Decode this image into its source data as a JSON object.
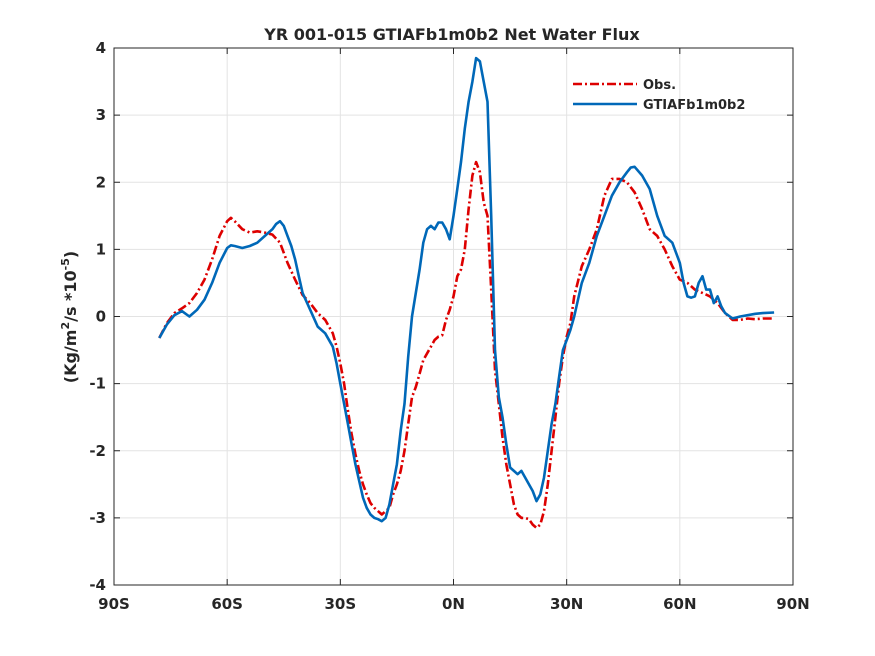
{
  "chart_data": {
    "type": "line",
    "title": "YR 001-015 GTIAFb1m0b2  Net Water Flux",
    "xlabel": "",
    "ylabel_parts": [
      "(Kg/m",
      "2",
      "/s *10",
      "-5",
      ")"
    ],
    "xlim": [
      -90,
      90
    ],
    "ylim": [
      -4,
      4
    ],
    "x_ticks": [
      -90,
      -60,
      -30,
      0,
      30,
      60,
      90
    ],
    "x_tick_labels": [
      "90S",
      "60S",
      "30S",
      "0N",
      "30N",
      "60N",
      "90N"
    ],
    "y_ticks": [
      -4,
      -3,
      -2,
      -1,
      0,
      1,
      2,
      3,
      4
    ],
    "y_tick_labels": [
      "-4",
      "-3",
      "-2",
      "-1",
      "0",
      "1",
      "2",
      "3",
      "4"
    ],
    "grid": true,
    "legend_position": "top-right",
    "series": [
      {
        "name": "Obs.",
        "color": "#dd0000",
        "style": "dashdot",
        "points": [
          [
            -78,
            -0.32
          ],
          [
            -76,
            -0.1
          ],
          [
            -74,
            0.05
          ],
          [
            -72,
            0.12
          ],
          [
            -70,
            0.2
          ],
          [
            -68,
            0.35
          ],
          [
            -66,
            0.55
          ],
          [
            -64,
            0.85
          ],
          [
            -62,
            1.2
          ],
          [
            -60,
            1.42
          ],
          [
            -59,
            1.47
          ],
          [
            -58,
            1.42
          ],
          [
            -56,
            1.3
          ],
          [
            -54,
            1.25
          ],
          [
            -52,
            1.27
          ],
          [
            -50,
            1.25
          ],
          [
            -48,
            1.22
          ],
          [
            -46,
            1.1
          ],
          [
            -44,
            0.8
          ],
          [
            -42,
            0.55
          ],
          [
            -40,
            0.32
          ],
          [
            -38,
            0.2
          ],
          [
            -36,
            0.05
          ],
          [
            -34,
            -0.05
          ],
          [
            -32,
            -0.25
          ],
          [
            -31,
            -0.45
          ],
          [
            -30,
            -0.7
          ],
          [
            -29,
            -1.0
          ],
          [
            -28,
            -1.4
          ],
          [
            -27,
            -1.75
          ],
          [
            -26,
            -2.05
          ],
          [
            -25,
            -2.3
          ],
          [
            -24,
            -2.5
          ],
          [
            -23,
            -2.65
          ],
          [
            -22,
            -2.78
          ],
          [
            -21,
            -2.85
          ],
          [
            -20,
            -2.9
          ],
          [
            -19,
            -2.95
          ],
          [
            -18,
            -2.9
          ],
          [
            -17,
            -2.85
          ],
          [
            -16,
            -2.65
          ],
          [
            -15,
            -2.5
          ],
          [
            -14,
            -2.3
          ],
          [
            -13,
            -2.0
          ],
          [
            -12,
            -1.6
          ],
          [
            -11,
            -1.2
          ],
          [
            -10,
            -1.05
          ],
          [
            -9,
            -0.85
          ],
          [
            -8,
            -0.65
          ],
          [
            -7,
            -0.55
          ],
          [
            -6,
            -0.45
          ],
          [
            -5,
            -0.35
          ],
          [
            -4,
            -0.3
          ],
          [
            -3,
            -0.28
          ],
          [
            -2,
            -0.05
          ],
          [
            -1,
            0.1
          ],
          [
            0,
            0.3
          ],
          [
            1,
            0.6
          ],
          [
            2,
            0.7
          ],
          [
            3,
            1.0
          ],
          [
            4,
            1.6
          ],
          [
            5,
            2.1
          ],
          [
            6,
            2.3
          ],
          [
            7,
            2.15
          ],
          [
            8,
            1.7
          ],
          [
            9,
            1.5
          ],
          [
            10,
            0.4
          ],
          [
            11,
            -0.8
          ],
          [
            12,
            -1.3
          ],
          [
            13,
            -1.8
          ],
          [
            14,
            -2.2
          ],
          [
            15,
            -2.5
          ],
          [
            16,
            -2.8
          ],
          [
            17,
            -2.95
          ],
          [
            18,
            -3.0
          ],
          [
            19,
            -3.0
          ],
          [
            20,
            -3.02
          ],
          [
            21,
            -3.1
          ],
          [
            22,
            -3.15
          ],
          [
            23,
            -3.1
          ],
          [
            24,
            -2.9
          ],
          [
            25,
            -2.5
          ],
          [
            26,
            -2.0
          ],
          [
            27,
            -1.5
          ],
          [
            28,
            -1.0
          ],
          [
            29,
            -0.6
          ],
          [
            30,
            -0.3
          ],
          [
            31,
            -0.1
          ],
          [
            32,
            0.3
          ],
          [
            34,
            0.75
          ],
          [
            36,
            1.0
          ],
          [
            38,
            1.3
          ],
          [
            40,
            1.8
          ],
          [
            42,
            2.05
          ],
          [
            44,
            2.05
          ],
          [
            46,
            2.0
          ],
          [
            48,
            1.85
          ],
          [
            50,
            1.6
          ],
          [
            52,
            1.3
          ],
          [
            54,
            1.2
          ],
          [
            56,
            1.0
          ],
          [
            58,
            0.75
          ],
          [
            60,
            0.55
          ],
          [
            62,
            0.5
          ],
          [
            64,
            0.4
          ],
          [
            66,
            0.35
          ],
          [
            68,
            0.3
          ],
          [
            70,
            0.2
          ],
          [
            72,
            0.05
          ],
          [
            74,
            -0.05
          ],
          [
            76,
            -0.05
          ],
          [
            78,
            -0.03
          ],
          [
            80,
            -0.04
          ],
          [
            82,
            -0.03
          ],
          [
            85,
            -0.03
          ]
        ]
      },
      {
        "name": "GTIAFb1m0b2",
        "color": "#0068b8",
        "style": "solid",
        "points": [
          [
            -78,
            -0.32
          ],
          [
            -76,
            -0.12
          ],
          [
            -74,
            0.02
          ],
          [
            -72,
            0.08
          ],
          [
            -70,
            0.0
          ],
          [
            -68,
            0.1
          ],
          [
            -66,
            0.25
          ],
          [
            -64,
            0.5
          ],
          [
            -62,
            0.8
          ],
          [
            -60,
            1.02
          ],
          [
            -59,
            1.06
          ],
          [
            -58,
            1.05
          ],
          [
            -56,
            1.02
          ],
          [
            -54,
            1.05
          ],
          [
            -52,
            1.1
          ],
          [
            -50,
            1.2
          ],
          [
            -48,
            1.3
          ],
          [
            -47,
            1.38
          ],
          [
            -46,
            1.42
          ],
          [
            -45,
            1.35
          ],
          [
            -44,
            1.2
          ],
          [
            -43,
            1.05
          ],
          [
            -42,
            0.85
          ],
          [
            -41,
            0.6
          ],
          [
            -40,
            0.35
          ],
          [
            -38,
            0.1
          ],
          [
            -36,
            -0.15
          ],
          [
            -34,
            -0.25
          ],
          [
            -32,
            -0.45
          ],
          [
            -31,
            -0.7
          ],
          [
            -30,
            -1.0
          ],
          [
            -29,
            -1.3
          ],
          [
            -28,
            -1.6
          ],
          [
            -27,
            -1.9
          ],
          [
            -26,
            -2.2
          ],
          [
            -25,
            -2.45
          ],
          [
            -24,
            -2.7
          ],
          [
            -23,
            -2.85
          ],
          [
            -22,
            -2.95
          ],
          [
            -21,
            -3.0
          ],
          [
            -20,
            -3.02
          ],
          [
            -19,
            -3.05
          ],
          [
            -18,
            -3.0
          ],
          [
            -17,
            -2.8
          ],
          [
            -16,
            -2.5
          ],
          [
            -15,
            -2.2
          ],
          [
            -14,
            -1.7
          ],
          [
            -13,
            -1.3
          ],
          [
            -12,
            -0.6
          ],
          [
            -11,
            0.0
          ],
          [
            -10,
            0.35
          ],
          [
            -9,
            0.7
          ],
          [
            -8,
            1.1
          ],
          [
            -7,
            1.3
          ],
          [
            -6,
            1.35
          ],
          [
            -5,
            1.3
          ],
          [
            -4,
            1.4
          ],
          [
            -3,
            1.4
          ],
          [
            -2,
            1.3
          ],
          [
            -1,
            1.15
          ],
          [
            0,
            1.5
          ],
          [
            1,
            1.9
          ],
          [
            2,
            2.3
          ],
          [
            3,
            2.8
          ],
          [
            4,
            3.2
          ],
          [
            5,
            3.5
          ],
          [
            6,
            3.85
          ],
          [
            7,
            3.8
          ],
          [
            8,
            3.5
          ],
          [
            9,
            3.2
          ],
          [
            10,
            1.5
          ],
          [
            11,
            -0.5
          ],
          [
            12,
            -1.2
          ],
          [
            13,
            -1.5
          ],
          [
            14,
            -1.9
          ],
          [
            15,
            -2.25
          ],
          [
            16,
            -2.3
          ],
          [
            17,
            -2.35
          ],
          [
            18,
            -2.3
          ],
          [
            19,
            -2.4
          ],
          [
            20,
            -2.5
          ],
          [
            21,
            -2.6
          ],
          [
            22,
            -2.75
          ],
          [
            23,
            -2.65
          ],
          [
            24,
            -2.4
          ],
          [
            25,
            -2.0
          ],
          [
            26,
            -1.6
          ],
          [
            27,
            -1.3
          ],
          [
            28,
            -0.9
          ],
          [
            29,
            -0.5
          ],
          [
            30,
            -0.35
          ],
          [
            31,
            -0.2
          ],
          [
            32,
            0.0
          ],
          [
            34,
            0.5
          ],
          [
            36,
            0.8
          ],
          [
            38,
            1.2
          ],
          [
            40,
            1.5
          ],
          [
            42,
            1.8
          ],
          [
            44,
            2.0
          ],
          [
            46,
            2.15
          ],
          [
            47,
            2.22
          ],
          [
            48,
            2.23
          ],
          [
            50,
            2.1
          ],
          [
            52,
            1.9
          ],
          [
            54,
            1.5
          ],
          [
            56,
            1.2
          ],
          [
            58,
            1.1
          ],
          [
            60,
            0.8
          ],
          [
            61,
            0.5
          ],
          [
            62,
            0.3
          ],
          [
            63,
            0.28
          ],
          [
            64,
            0.3
          ],
          [
            65,
            0.5
          ],
          [
            66,
            0.6
          ],
          [
            67,
            0.4
          ],
          [
            68,
            0.4
          ],
          [
            69,
            0.2
          ],
          [
            70,
            0.3
          ],
          [
            71,
            0.15
          ],
          [
            72,
            0.05
          ],
          [
            74,
            -0.03
          ],
          [
            76,
            0.0
          ],
          [
            78,
            0.02
          ],
          [
            80,
            0.04
          ],
          [
            82,
            0.05
          ],
          [
            85,
            0.06
          ]
        ]
      }
    ]
  }
}
